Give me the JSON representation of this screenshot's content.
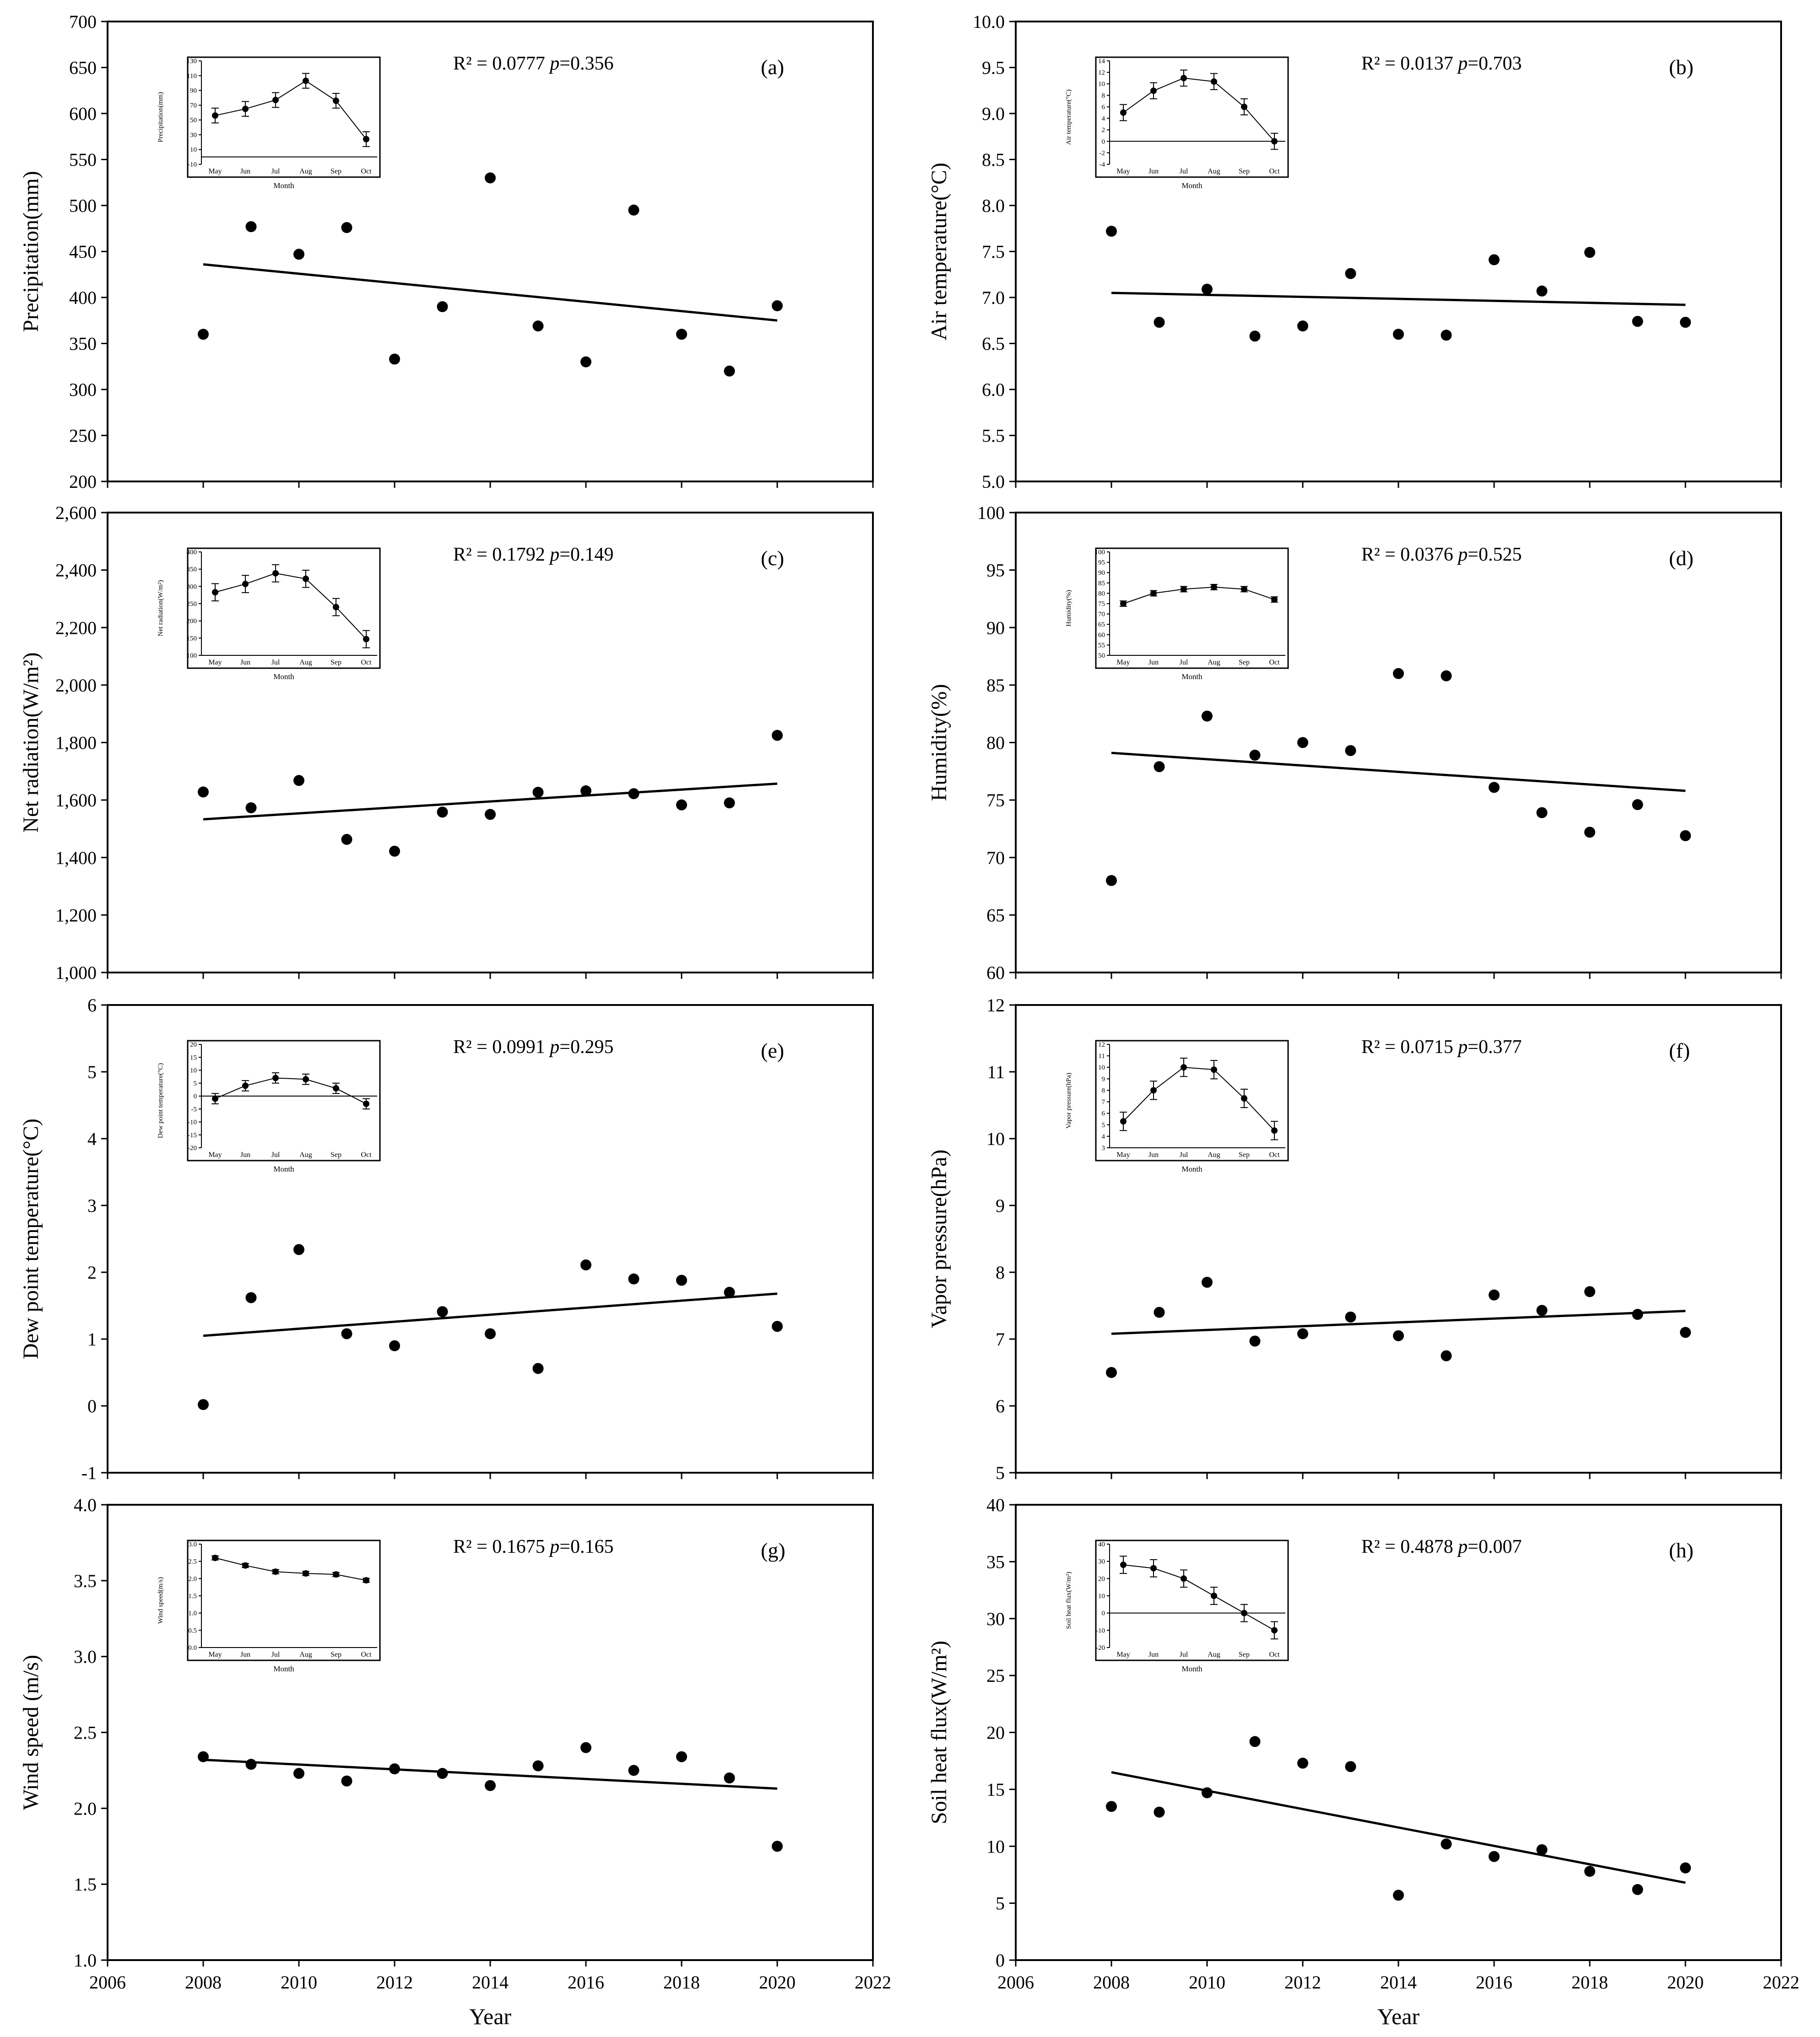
{
  "x_axis": {
    "label": "Year",
    "range": [
      2006,
      2022
    ],
    "ticks": [
      2006,
      2008,
      2010,
      2012,
      2014,
      2016,
      2018,
      2020,
      2022
    ]
  },
  "inset_x_label": "Month",
  "style": {
    "point_color": "#000000",
    "line_color": "#000000",
    "axis_color": "#000000",
    "background": "#ffffff"
  },
  "chart_data": [
    {
      "type": "scatter",
      "panel": "(a)",
      "stats": "R² = 0.0777",
      "p_value": "0.356",
      "ylabel": "Precipitation(mm)",
      "ylim": [
        200,
        700
      ],
      "yticks": [
        "200",
        "250",
        "300",
        "350",
        "400",
        "450",
        "500",
        "550",
        "600",
        "650",
        "700"
      ],
      "x": [
        2008,
        2009,
        2010,
        2011,
        2012,
        2013,
        2014,
        2015,
        2016,
        2017,
        2018,
        2019,
        2020
      ],
      "y": [
        360,
        477,
        447,
        476,
        333,
        390,
        530,
        369,
        330,
        495,
        360,
        320,
        391
      ],
      "trend": {
        "x": [
          2008,
          2020
        ],
        "y": [
          436,
          375
        ]
      },
      "inset": {
        "ylabel": "Precipitation(mm)",
        "ylim": [
          -10,
          130
        ],
        "yticks": [
          "-10",
          "10",
          "30",
          "50",
          "70",
          "90",
          "110",
          "130"
        ],
        "categories": [
          "May",
          "Jun",
          "Jul",
          "Aug",
          "Sep",
          "Oct"
        ],
        "values": [
          56,
          65,
          77,
          103,
          76,
          24
        ],
        "errors": [
          10,
          10,
          10,
          10,
          10,
          10
        ]
      }
    },
    {
      "type": "scatter",
      "panel": "(b)",
      "stats": "R² = 0.0137",
      "p_value": "0.703",
      "ylabel": "Air temperature(°C)",
      "ylim": [
        5,
        10
      ],
      "yticks": [
        "5.0",
        "5.5",
        "6.0",
        "6.5",
        "7.0",
        "7.5",
        "8.0",
        "8.5",
        "9.0",
        "9.5",
        "10.0"
      ],
      "x": [
        2008,
        2009,
        2010,
        2011,
        2012,
        2013,
        2014,
        2015,
        2016,
        2017,
        2018,
        2019,
        2020
      ],
      "y": [
        7.72,
        6.73,
        7.09,
        6.58,
        6.69,
        7.26,
        6.6,
        6.59,
        7.41,
        7.07,
        7.49,
        6.74,
        6.73
      ],
      "trend": {
        "x": [
          2008,
          2020
        ],
        "y": [
          7.05,
          6.92
        ]
      },
      "inset": {
        "ylabel": "Air temperature(°C)",
        "ylim": [
          -4,
          14
        ],
        "yticks": [
          "-4",
          "-2",
          "0",
          "2",
          "4",
          "6",
          "8",
          "10",
          "12",
          "14"
        ],
        "categories": [
          "May",
          "Jun",
          "Jul",
          "Aug",
          "Sep",
          "Oct"
        ],
        "values": [
          5.0,
          8.8,
          11.0,
          10.4,
          6.0,
          0.0
        ],
        "errors": [
          1.4,
          1.4,
          1.4,
          1.4,
          1.4,
          1.4
        ]
      }
    },
    {
      "type": "scatter",
      "panel": "(c)",
      "stats": "R² = 0.1792",
      "p_value": "0.149",
      "ylabel": "Net radiation(W/m²)",
      "ylim": [
        1000,
        2600
      ],
      "yticks": [
        "1,000",
        "1,200",
        "1,400",
        "1,600",
        "1,800",
        "2,000",
        "2,200",
        "2,400",
        "2,600"
      ],
      "x": [
        2008,
        2009,
        2010,
        2011,
        2012,
        2013,
        2014,
        2015,
        2016,
        2017,
        2018,
        2019,
        2020
      ],
      "y": [
        1628,
        1573,
        1668,
        1463,
        1422,
        1558,
        1550,
        1627,
        1632,
        1622,
        1583,
        1590,
        1825
      ],
      "trend": {
        "x": [
          2008,
          2020
        ],
        "y": [
          1533,
          1657
        ]
      },
      "inset": {
        "ylabel": "Net radiation(W/m²)",
        "ylim": [
          100,
          400
        ],
        "yticks": [
          "100",
          "150",
          "200",
          "250",
          "300",
          "350",
          "400"
        ],
        "categories": [
          "May",
          "Jun",
          "Jul",
          "Aug",
          "Sep",
          "Oct"
        ],
        "values": [
          283,
          307,
          338,
          322,
          240,
          147
        ],
        "errors": [
          25,
          25,
          25,
          25,
          25,
          25
        ]
      }
    },
    {
      "type": "scatter",
      "panel": "(d)",
      "stats": "R² = 0.0376",
      "p_value": "0.525",
      "ylabel": "Humidity(%)",
      "ylim": [
        60,
        100
      ],
      "yticks": [
        "60",
        "65",
        "70",
        "75",
        "80",
        "85",
        "90",
        "95",
        "100"
      ],
      "x": [
        2008,
        2009,
        2010,
        2011,
        2012,
        2013,
        2014,
        2015,
        2016,
        2017,
        2018,
        2019,
        2020
      ],
      "y": [
        68.0,
        77.9,
        82.3,
        78.9,
        80.0,
        79.3,
        86.0,
        85.8,
        76.1,
        73.9,
        72.2,
        74.6,
        71.9
      ],
      "trend": {
        "x": [
          2008,
          2020
        ],
        "y": [
          79.1,
          75.8
        ]
      },
      "inset": {
        "ylabel": "Humidity(%)",
        "ylim": [
          50,
          100
        ],
        "yticks": [
          "50",
          "55",
          "60",
          "65",
          "70",
          "75",
          "80",
          "85",
          "90",
          "95",
          "100"
        ],
        "categories": [
          "May",
          "Jun",
          "Jul",
          "Aug",
          "Sep",
          "Oct"
        ],
        "values": [
          75.0,
          80.0,
          82.0,
          83.0,
          82.0,
          77.0
        ],
        "errors": [
          1.3,
          1.3,
          1.3,
          1.3,
          1.3,
          1.3
        ]
      }
    },
    {
      "type": "scatter",
      "panel": "(e)",
      "stats": "R² = 0.0991",
      "p_value": "0.295",
      "ylabel": "Dew point temperature(°C)",
      "ylim": [
        -1,
        6
      ],
      "yticks": [
        "-1",
        "0",
        "1",
        "2",
        "3",
        "4",
        "5",
        "6"
      ],
      "x": [
        2008,
        2009,
        2010,
        2011,
        2012,
        2013,
        2014,
        2015,
        2016,
        2017,
        2018,
        2019,
        2020
      ],
      "y": [
        0.02,
        1.62,
        2.34,
        1.08,
        0.9,
        1.41,
        1.08,
        0.56,
        2.11,
        1.9,
        1.88,
        1.7,
        1.19
      ],
      "trend": {
        "x": [
          2008,
          2020
        ],
        "y": [
          1.05,
          1.68
        ]
      },
      "inset": {
        "ylabel": "Dew point temperature(°C)",
        "ylim": [
          -20,
          20
        ],
        "yticks": [
          "-20",
          "-15",
          "-10",
          "-5",
          "0",
          "5",
          "10",
          "15",
          "20"
        ],
        "categories": [
          "May",
          "Jun",
          "Jul",
          "Aug",
          "Sep",
          "Oct"
        ],
        "values": [
          -1.0,
          4.0,
          7.0,
          6.5,
          3.0,
          -3.0
        ],
        "errors": [
          2.0,
          2.0,
          2.0,
          2.0,
          2.0,
          2.0
        ]
      }
    },
    {
      "type": "scatter",
      "panel": "(f)",
      "stats": "R² = 0.0715",
      "p_value": "0.377",
      "ylabel": "Vapor pressure(hPa)",
      "ylim": [
        5,
        12
      ],
      "yticks": [
        "5",
        "6",
        "7",
        "8",
        "9",
        "10",
        "11",
        "12"
      ],
      "x": [
        2008,
        2009,
        2010,
        2011,
        2012,
        2013,
        2014,
        2015,
        2016,
        2017,
        2018,
        2019,
        2020
      ],
      "y": [
        6.5,
        7.4,
        7.85,
        6.97,
        7.08,
        7.33,
        7.05,
        6.75,
        7.66,
        7.43,
        7.71,
        7.37,
        7.1
      ],
      "trend": {
        "x": [
          2008,
          2020
        ],
        "y": [
          7.08,
          7.42
        ]
      },
      "inset": {
        "ylabel": "Vapor pressure(hPa)",
        "ylim": [
          3,
          12
        ],
        "yticks": [
          "3",
          "4",
          "5",
          "6",
          "7",
          "8",
          "9",
          "10",
          "11",
          "12"
        ],
        "categories": [
          "May",
          "Jun",
          "Jul",
          "Aug",
          "Sep",
          "Oct"
        ],
        "values": [
          5.3,
          8.0,
          10.0,
          9.8,
          7.3,
          4.5
        ],
        "errors": [
          0.8,
          0.8,
          0.8,
          0.8,
          0.8,
          0.8
        ]
      }
    },
    {
      "type": "scatter",
      "panel": "(g)",
      "stats": "R² = 0.1675",
      "p_value": "0.165",
      "ylabel": "Wind speed (m/s)",
      "ylim": [
        1.0,
        4.0
      ],
      "yticks": [
        "1.0",
        "1.5",
        "2.0",
        "2.5",
        "3.0",
        "3.5",
        "4.0"
      ],
      "x": [
        2008,
        2009,
        2010,
        2011,
        2012,
        2013,
        2014,
        2015,
        2016,
        2017,
        2018,
        2019,
        2020
      ],
      "y": [
        2.34,
        2.29,
        2.23,
        2.18,
        2.26,
        2.23,
        2.15,
        2.28,
        2.4,
        2.25,
        2.34,
        2.2,
        1.75
      ],
      "trend": {
        "x": [
          2008,
          2020
        ],
        "y": [
          2.32,
          2.13
        ]
      },
      "inset": {
        "ylabel": "Wind speed(m/s)",
        "ylim": [
          0,
          3.0
        ],
        "yticks": [
          "0.0",
          "0.5",
          "1.0",
          "1.5",
          "2.0",
          "2.5",
          "3.0"
        ],
        "categories": [
          "May",
          "Jun",
          "Jul",
          "Aug",
          "Sep",
          "Oct"
        ],
        "values": [
          2.6,
          2.38,
          2.2,
          2.15,
          2.12,
          1.95
        ],
        "errors": [
          0.06,
          0.06,
          0.06,
          0.06,
          0.06,
          0.06
        ]
      }
    },
    {
      "type": "scatter",
      "panel": "(h)",
      "stats": "R² = 0.4878",
      "p_value": "0.007",
      "ylabel": "Soil heat flux(W/m²)",
      "ylim": [
        0,
        40
      ],
      "yticks": [
        "0",
        "5",
        "10",
        "15",
        "20",
        "25",
        "30",
        "35",
        "40"
      ],
      "x": [
        2008,
        2009,
        2010,
        2011,
        2012,
        2013,
        2014,
        2015,
        2016,
        2017,
        2018,
        2019,
        2020
      ],
      "y": [
        13.5,
        13.0,
        14.7,
        19.2,
        17.3,
        17.0,
        5.7,
        10.2,
        9.1,
        9.7,
        7.8,
        6.2,
        8.1
      ],
      "trend": {
        "x": [
          2008,
          2020
        ],
        "y": [
          16.5,
          6.8
        ]
      },
      "inset": {
        "ylabel": "Soil heat flux(W/m²)",
        "ylim": [
          -20,
          40
        ],
        "yticks": [
          "-20",
          "-10",
          "0",
          "10",
          "20",
          "30",
          "40"
        ],
        "categories": [
          "May",
          "Jun",
          "Jul",
          "Aug",
          "Sep",
          "Oct"
        ],
        "values": [
          28,
          26,
          20,
          10,
          0,
          -10
        ],
        "errors": [
          5,
          5,
          5,
          5,
          5,
          5
        ]
      }
    }
  ]
}
